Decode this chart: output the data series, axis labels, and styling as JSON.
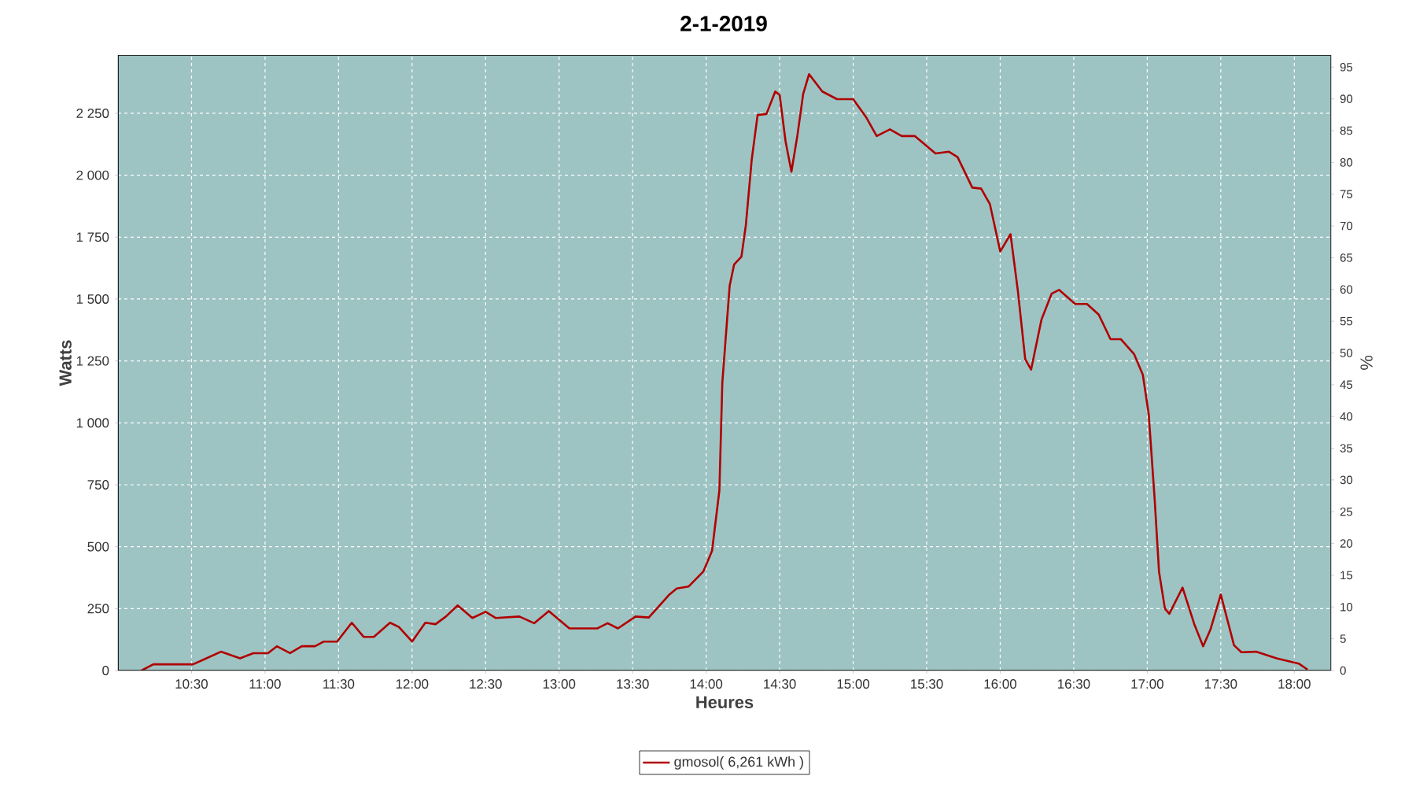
{
  "chart_data": {
    "type": "line",
    "title": "2-1-2019",
    "xlabel": "Heures",
    "ylabel": "Watts",
    "y2label": "%",
    "x": [
      10.16,
      10.24,
      10.51,
      10.7,
      10.83,
      10.92,
      11.02,
      11.08,
      11.17,
      11.25,
      11.34,
      11.4,
      11.49,
      11.59,
      11.67,
      11.74,
      11.85,
      11.91,
      12.0,
      12.09,
      12.16,
      12.23,
      12.31,
      12.41,
      12.5,
      12.57,
      12.73,
      12.83,
      12.93,
      13.07,
      13.26,
      13.33,
      13.4,
      13.52,
      13.61,
      13.75,
      13.8,
      13.88,
      13.98,
      14.04,
      14.09,
      14.11,
      14.16,
      14.19,
      14.24,
      14.27,
      14.31,
      14.35,
      14.41,
      14.47,
      14.5,
      14.54,
      14.58,
      14.62,
      14.66,
      14.7,
      14.79,
      14.89,
      15.0,
      15.09,
      15.16,
      15.25,
      15.33,
      15.42,
      15.56,
      15.65,
      15.71,
      15.81,
      15.87,
      15.93,
      16.0,
      16.07,
      16.12,
      16.17,
      16.21,
      16.28,
      16.35,
      16.4,
      16.51,
      16.59,
      16.67,
      16.75,
      16.82,
      16.91,
      16.97,
      17.01,
      17.05,
      17.08,
      17.12,
      17.15,
      17.24,
      17.32,
      17.38,
      17.43,
      17.5,
      17.59,
      17.64,
      17.74,
      17.88,
      18.03,
      18.09
    ],
    "series": [
      {
        "name": "gmosol( 6,261 kWh )",
        "color": "#b00000",
        "values": [
          0,
          25,
          25,
          76,
          49,
          70,
          70,
          98,
          70,
          98,
          98,
          117,
          117,
          193,
          136,
          136,
          193,
          176,
          117,
          193,
          187,
          218,
          263,
          212,
          237,
          212,
          218,
          191,
          240,
          170,
          170,
          191,
          170,
          218,
          214,
          307,
          331,
          339,
          399,
          483,
          727,
          1162,
          1554,
          1639,
          1671,
          1798,
          2063,
          2243,
          2247,
          2338,
          2324,
          2137,
          2014,
          2158,
          2328,
          2408,
          2338,
          2307,
          2307,
          2232,
          2158,
          2185,
          2158,
          2158,
          2088,
          2095,
          2073,
          1950,
          1946,
          1883,
          1692,
          1762,
          1533,
          1257,
          1215,
          1416,
          1522,
          1537,
          1480,
          1480,
          1437,
          1338,
          1338,
          1278,
          1194,
          1035,
          695,
          399,
          250,
          229,
          335,
          187,
          98,
          166,
          307,
          102,
          74,
          76,
          49,
          28,
          4
        ]
      }
    ],
    "xlim": [
      10.0,
      18.25
    ],
    "xticks": [
      {
        "value": 10.5,
        "label": "10:30"
      },
      {
        "value": 11,
        "label": "11:00"
      },
      {
        "value": 11.5,
        "label": "11:30"
      },
      {
        "value": 12,
        "label": "12:00"
      },
      {
        "value": 12.5,
        "label": "12:30"
      },
      {
        "value": 13,
        "label": "13:00"
      },
      {
        "value": 13.5,
        "label": "13:30"
      },
      {
        "value": 14,
        "label": "14:00"
      },
      {
        "value": 14.5,
        "label": "14:30"
      },
      {
        "value": 15,
        "label": "15:00"
      },
      {
        "value": 15.5,
        "label": "15:30"
      },
      {
        "value": 16,
        "label": "16:00"
      },
      {
        "value": 16.5,
        "label": "16:30"
      },
      {
        "value": 17,
        "label": "17:00"
      },
      {
        "value": 17.5,
        "label": "17:30"
      },
      {
        "value": 18,
        "label": "18:00"
      }
    ],
    "ylim": [
      0,
      2485
    ],
    "yticks": [
      0,
      250,
      500,
      750,
      {
        "value": 1000,
        "label": "1 000"
      },
      {
        "value": 1250,
        "label": "1 250"
      },
      {
        "value": 1500,
        "label": "1 500"
      },
      {
        "value": 1750,
        "label": "1 750"
      },
      {
        "value": 2000,
        "label": "2 000"
      },
      {
        "value": 2250,
        "label": "2 250"
      }
    ],
    "y2lim": [
      0,
      96.9
    ],
    "y2ticks": [
      0,
      5,
      10,
      15,
      20,
      25,
      30,
      35,
      40,
      45,
      50,
      55,
      60,
      65,
      70,
      75,
      80,
      85,
      90,
      95
    ],
    "grid": true,
    "legend": "bottom",
    "marker": "none",
    "line_style": "solid"
  }
}
